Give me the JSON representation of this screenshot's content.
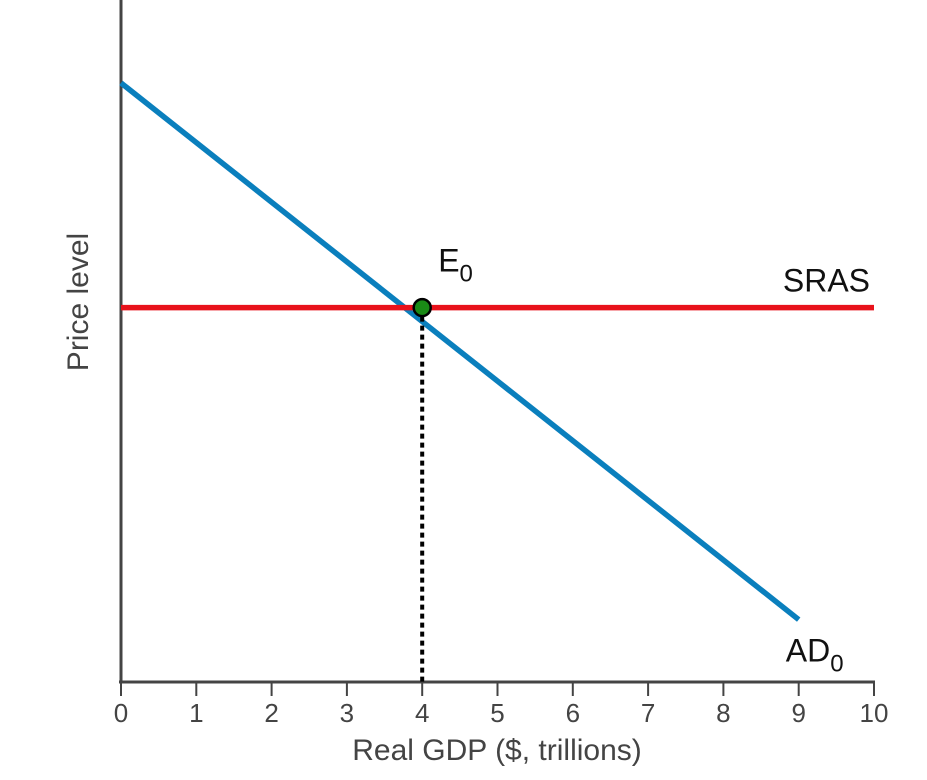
{
  "chart_data": {
    "type": "line",
    "xlabel": "Real GDP ($, trillions)",
    "ylabel": "Price level",
    "xlim": [
      0,
      10
    ],
    "x_ticks": [
      "0",
      "1",
      "2",
      "3",
      "4",
      "5",
      "6",
      "7",
      "8",
      "9",
      "10"
    ],
    "grid": false,
    "y_scale": "unlabeled (relative units 0-100)",
    "series": [
      {
        "name": "AD0",
        "label_main": "AD",
        "label_sub": "0",
        "color": "#0a7fbd",
        "points": [
          [
            0,
            96
          ],
          [
            9,
            10
          ]
        ]
      },
      {
        "name": "SRAS",
        "label_main": "SRAS",
        "label_sub": "",
        "color": "#e8121b",
        "points": [
          [
            0,
            60
          ],
          [
            10,
            60
          ]
        ]
      }
    ],
    "annotations": [
      {
        "name": "E0",
        "label_main": "E",
        "label_sub": "0",
        "x": 4,
        "y": 60,
        "marker_color": "#1a8a16",
        "dropline_to_x_axis": true
      }
    ]
  }
}
